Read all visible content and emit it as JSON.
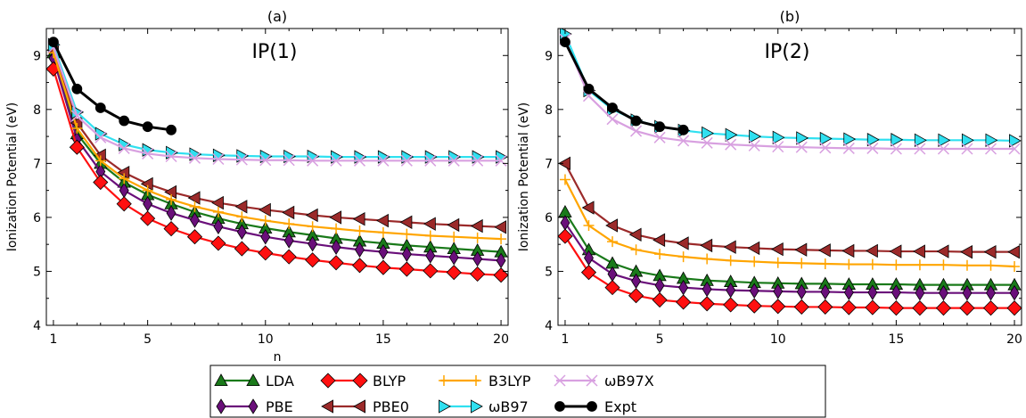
{
  "chart_data": [
    {
      "type": "line",
      "title": "(a)",
      "annotation": "IP(1)",
      "xlabel": "n",
      "ylabel": "Ionization Potential (eV)",
      "xlim": [
        0.7,
        20.3
      ],
      "ylim": [
        4,
        9.5
      ],
      "xticks": [
        1,
        5,
        10,
        15,
        20
      ],
      "yticks": [
        4,
        5,
        6,
        7,
        8,
        9
      ],
      "series": [
        {
          "name": "LDA",
          "color": "#1a7a1a",
          "marker": "triangle-up",
          "x": [
            1,
            2,
            3,
            4,
            5,
            6,
            7,
            8,
            9,
            10,
            11,
            12,
            13,
            14,
            15,
            16,
            17,
            18,
            19,
            20
          ],
          "y": [
            9.05,
            7.55,
            7.0,
            6.65,
            6.42,
            6.25,
            6.1,
            5.98,
            5.88,
            5.8,
            5.73,
            5.67,
            5.61,
            5.56,
            5.52,
            5.48,
            5.45,
            5.42,
            5.39,
            5.36
          ]
        },
        {
          "name": "PBE",
          "color": "#6a0f7a",
          "marker": "thin-diamond",
          "x": [
            1,
            2,
            3,
            4,
            5,
            6,
            7,
            8,
            9,
            10,
            11,
            12,
            13,
            14,
            15,
            16,
            17,
            18,
            19,
            20
          ],
          "y": [
            8.95,
            7.45,
            6.85,
            6.5,
            6.25,
            6.08,
            5.95,
            5.83,
            5.73,
            5.64,
            5.57,
            5.51,
            5.45,
            5.4,
            5.36,
            5.32,
            5.29,
            5.26,
            5.23,
            5.2
          ]
        },
        {
          "name": "BLYP",
          "color": "#ff1010",
          "marker": "diamond",
          "x": [
            1,
            2,
            3,
            4,
            5,
            6,
            7,
            8,
            9,
            10,
            11,
            12,
            13,
            14,
            15,
            16,
            17,
            18,
            19,
            20
          ],
          "y": [
            8.75,
            7.3,
            6.65,
            6.25,
            5.98,
            5.79,
            5.64,
            5.52,
            5.42,
            5.34,
            5.27,
            5.21,
            5.16,
            5.11,
            5.07,
            5.04,
            5.01,
            4.98,
            4.95,
            4.93
          ]
        },
        {
          "name": "PBE0",
          "color": "#9b2a2a",
          "marker": "triangle-left",
          "x": [
            1,
            2,
            3,
            4,
            5,
            6,
            7,
            8,
            9,
            10,
            11,
            12,
            13,
            14,
            15,
            16,
            17,
            18,
            19,
            20
          ],
          "y": [
            9.1,
            7.75,
            7.15,
            6.83,
            6.62,
            6.47,
            6.36,
            6.27,
            6.2,
            6.14,
            6.09,
            6.04,
            6.0,
            5.97,
            5.94,
            5.91,
            5.88,
            5.86,
            5.84,
            5.82
          ]
        },
        {
          "name": "B3LYP",
          "color": "#ffa500",
          "marker": "plus",
          "x": [
            1,
            2,
            3,
            4,
            5,
            6,
            7,
            8,
            9,
            10,
            11,
            12,
            13,
            14,
            15,
            16,
            17,
            18,
            19,
            20
          ],
          "y": [
            9.05,
            7.65,
            7.05,
            6.72,
            6.5,
            6.33,
            6.2,
            6.1,
            6.01,
            5.94,
            5.88,
            5.83,
            5.79,
            5.75,
            5.72,
            5.69,
            5.66,
            5.64,
            5.62,
            5.6
          ]
        },
        {
          "name": "ωB97",
          "color": "#30e0f0",
          "marker": "triangle-right",
          "x": [
            1,
            2,
            3,
            4,
            5,
            6,
            7,
            8,
            9,
            10,
            11,
            12,
            13,
            14,
            15,
            16,
            17,
            18,
            19,
            20
          ],
          "y": [
            9.2,
            7.95,
            7.55,
            7.35,
            7.25,
            7.2,
            7.17,
            7.15,
            7.14,
            7.13,
            7.13,
            7.13,
            7.12,
            7.12,
            7.12,
            7.12,
            7.12,
            7.12,
            7.12,
            7.12
          ]
        },
        {
          "name": "ωB97X",
          "color": "#d8a0e0",
          "marker": "x",
          "x": [
            1,
            2,
            3,
            4,
            5,
            6,
            7,
            8,
            9,
            10,
            11,
            12,
            13,
            14,
            15,
            16,
            17,
            18,
            19,
            20
          ],
          "y": [
            9.15,
            7.88,
            7.48,
            7.28,
            7.18,
            7.13,
            7.1,
            7.08,
            7.07,
            7.06,
            7.06,
            7.05,
            7.05,
            7.05,
            7.05,
            7.05,
            7.05,
            7.05,
            7.05,
            7.05
          ]
        },
        {
          "name": "Expt",
          "color": "#000000",
          "marker": "circle",
          "x": [
            1,
            2,
            3,
            4,
            5,
            6
          ],
          "y": [
            9.25,
            8.38,
            8.03,
            7.79,
            7.68,
            7.62
          ]
        }
      ]
    },
    {
      "type": "line",
      "title": "(b)",
      "annotation": "IP(2)",
      "xlabel": "",
      "ylabel": "Ionization Potential (eV)",
      "xlim": [
        0.7,
        20.3
      ],
      "ylim": [
        4,
        9.5
      ],
      "xticks": [
        1,
        5,
        10,
        15,
        20
      ],
      "yticks": [
        4,
        5,
        6,
        7,
        8,
        9
      ],
      "series": [
        {
          "name": "LDA",
          "color": "#1a7a1a",
          "marker": "triangle-up",
          "x": [
            1,
            2,
            3,
            4,
            5,
            6,
            7,
            8,
            9,
            10,
            11,
            12,
            13,
            14,
            15,
            16,
            17,
            18,
            19,
            20
          ],
          "y": [
            6.1,
            5.4,
            5.15,
            5.0,
            4.92,
            4.87,
            4.83,
            4.81,
            4.79,
            4.78,
            4.77,
            4.77,
            4.76,
            4.76,
            4.76,
            4.75,
            4.75,
            4.75,
            4.75,
            4.75
          ]
        },
        {
          "name": "PBE",
          "color": "#6a0f7a",
          "marker": "thin-diamond",
          "x": [
            1,
            2,
            3,
            4,
            5,
            6,
            7,
            8,
            9,
            10,
            11,
            12,
            13,
            14,
            15,
            16,
            17,
            18,
            19,
            20
          ],
          "y": [
            5.9,
            5.25,
            4.95,
            4.82,
            4.74,
            4.7,
            4.67,
            4.65,
            4.64,
            4.63,
            4.62,
            4.62,
            4.61,
            4.61,
            4.61,
            4.6,
            4.6,
            4.6,
            4.6,
            4.6
          ]
        },
        {
          "name": "BLYP",
          "color": "#ff1010",
          "marker": "diamond",
          "x": [
            1,
            2,
            3,
            4,
            5,
            6,
            7,
            8,
            9,
            10,
            11,
            12,
            13,
            14,
            15,
            16,
            17,
            18,
            19,
            20
          ],
          "y": [
            5.65,
            4.98,
            4.7,
            4.55,
            4.47,
            4.43,
            4.4,
            4.38,
            4.36,
            4.35,
            4.34,
            4.34,
            4.33,
            4.33,
            4.32,
            4.32,
            4.32,
            4.32,
            4.32,
            4.32
          ]
        },
        {
          "name": "PBE0",
          "color": "#9b2a2a",
          "marker": "triangle-left",
          "x": [
            1,
            2,
            3,
            4,
            5,
            6,
            7,
            8,
            9,
            10,
            11,
            12,
            13,
            14,
            15,
            16,
            17,
            18,
            19,
            20
          ],
          "y": [
            7.0,
            6.18,
            5.85,
            5.68,
            5.58,
            5.52,
            5.48,
            5.45,
            5.43,
            5.41,
            5.4,
            5.39,
            5.38,
            5.38,
            5.37,
            5.37,
            5.37,
            5.36,
            5.36,
            5.36
          ]
        },
        {
          "name": "B3LYP",
          "color": "#ffa500",
          "marker": "plus",
          "x": [
            1,
            2,
            3,
            4,
            5,
            6,
            7,
            8,
            9,
            10,
            11,
            12,
            13,
            14,
            15,
            16,
            17,
            18,
            19,
            20
          ],
          "y": [
            6.7,
            5.85,
            5.55,
            5.4,
            5.32,
            5.27,
            5.23,
            5.2,
            5.18,
            5.16,
            5.15,
            5.14,
            5.13,
            5.13,
            5.12,
            5.12,
            5.12,
            5.11,
            5.11,
            5.09
          ]
        },
        {
          "name": "ωB97",
          "color": "#30e0f0",
          "marker": "triangle-right",
          "x": [
            1,
            2,
            3,
            4,
            5,
            6,
            7,
            8,
            9,
            10,
            11,
            12,
            13,
            14,
            15,
            16,
            17,
            18,
            19,
            20
          ],
          "y": [
            9.4,
            8.35,
            8.0,
            7.8,
            7.68,
            7.61,
            7.56,
            7.53,
            7.5,
            7.48,
            7.47,
            7.46,
            7.45,
            7.44,
            7.44,
            7.43,
            7.43,
            7.43,
            7.43,
            7.42
          ]
        },
        {
          "name": "ωB97X",
          "color": "#d8a0e0",
          "marker": "x",
          "x": [
            1,
            2,
            3,
            4,
            5,
            6,
            7,
            8,
            9,
            10,
            11,
            12,
            13,
            14,
            15,
            16,
            17,
            18,
            19,
            20
          ],
          "y": [
            9.3,
            8.25,
            7.82,
            7.6,
            7.48,
            7.42,
            7.38,
            7.35,
            7.33,
            7.31,
            7.3,
            7.29,
            7.28,
            7.28,
            7.27,
            7.27,
            7.27,
            7.27,
            7.27,
            7.27
          ]
        },
        {
          "name": "Expt",
          "color": "#000000",
          "marker": "circle",
          "x": [
            1,
            2,
            3,
            4,
            5,
            6
          ],
          "y": [
            9.25,
            8.38,
            8.03,
            7.79,
            7.68,
            7.62
          ]
        }
      ]
    }
  ],
  "legend": {
    "placement": "bottom-center",
    "order": [
      "LDA",
      "PBE",
      "BLYP",
      "PBE0",
      "B3LYP",
      "ωB97",
      "ωB97X",
      "Expt"
    ]
  }
}
